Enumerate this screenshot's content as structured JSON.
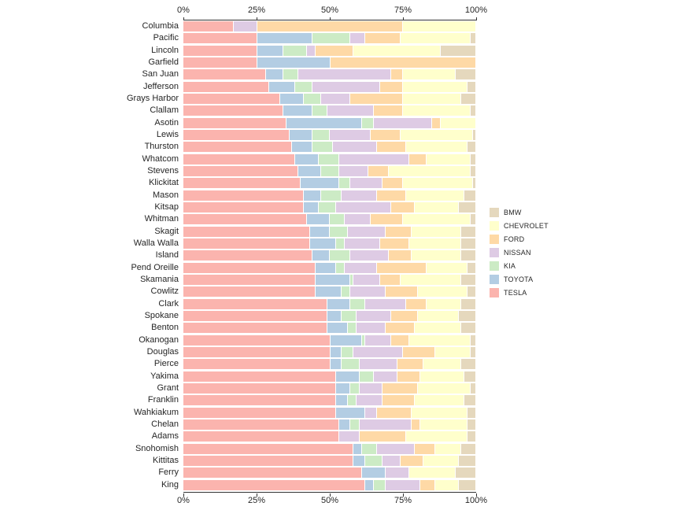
{
  "colors": {
    "axis_line": "#333333",
    "text": "#262626",
    "background": "#ffffff"
  },
  "axis": {
    "tick_labels": [
      "0%",
      "25%",
      "50%",
      "75%",
      "100%"
    ],
    "tick_values": [
      0,
      25,
      50,
      75,
      100
    ]
  },
  "legend": {
    "items": [
      {
        "label": "BMW",
        "color": "#e5d8bd"
      },
      {
        "label": "CHEVROLET",
        "color": "#ffffcc"
      },
      {
        "label": "FORD",
        "color": "#fed9a6"
      },
      {
        "label": "NISSAN",
        "color": "#decbe4"
      },
      {
        "label": "KIA",
        "color": "#ccebc5"
      },
      {
        "label": "TOYOTA",
        "color": "#b3cde3"
      },
      {
        "label": "TESLA",
        "color": "#fbb4ae"
      }
    ]
  },
  "chart_data": {
    "type": "bar",
    "orientation": "horizontal",
    "stacked": true,
    "unit": "percent",
    "xlim": [
      0,
      100
    ],
    "grid": false,
    "legend_position": "right",
    "categories": [
      "Columbia",
      "Pacific",
      "Lincoln",
      "Garfield",
      "San Juan",
      "Jefferson",
      "Grays Harbor",
      "Clallam",
      "Asotin",
      "Lewis",
      "Thurston",
      "Whatcom",
      "Stevens",
      "Klickitat",
      "Mason",
      "Kitsap",
      "Whitman",
      "Skagit",
      "Walla Walla",
      "Island",
      "Pend Oreille",
      "Skamania",
      "Cowlitz",
      "Clark",
      "Spokane",
      "Benton",
      "Okanogan",
      "Douglas",
      "Pierce",
      "Yakima",
      "Grant",
      "Franklin",
      "Wahkiakum",
      "Chelan",
      "Adams",
      "Snohomish",
      "Kittitas",
      "Ferry",
      "King"
    ],
    "series": [
      {
        "name": "TESLA",
        "color": "#fbb4ae",
        "values": [
          17,
          25,
          25,
          25,
          28,
          29,
          33,
          34,
          35,
          36,
          37,
          38,
          39,
          40,
          41,
          41,
          42,
          43,
          43,
          44,
          45,
          45,
          45,
          49,
          49,
          49,
          50,
          50,
          50,
          52,
          52,
          52,
          52,
          53,
          53,
          58,
          58,
          61,
          62
        ]
      },
      {
        "name": "TOYOTA",
        "color": "#b3cde3",
        "values": [
          0,
          19,
          9,
          25,
          6,
          9,
          8,
          10,
          26,
          8,
          7,
          8,
          8,
          13,
          6,
          5,
          8,
          7,
          9,
          6,
          7,
          12,
          9,
          8,
          5,
          7,
          11,
          4,
          4,
          8,
          5,
          4,
          10,
          4,
          0,
          3,
          4,
          8,
          3
        ]
      },
      {
        "name": "KIA",
        "color": "#ccebc5",
        "values": [
          0,
          13,
          8,
          0,
          5,
          6,
          6,
          5,
          4,
          6,
          7,
          7,
          6,
          4,
          7,
          6,
          5,
          6,
          3,
          7,
          3,
          1,
          3,
          5,
          5,
          3,
          1,
          4,
          6,
          5,
          3,
          3,
          0,
          3,
          0,
          5,
          6,
          0,
          4
        ]
      },
      {
        "name": "NISSAN",
        "color": "#decbe4",
        "values": [
          8,
          5,
          3,
          0,
          32,
          23,
          10,
          16,
          20,
          14,
          15,
          24,
          10,
          11,
          12,
          19,
          9,
          13,
          12,
          13,
          11,
          9,
          12,
          14,
          12,
          10,
          9,
          17,
          13,
          8,
          8,
          9,
          4,
          18,
          7,
          13,
          6,
          8,
          12
        ]
      },
      {
        "name": "FORD",
        "color": "#fed9a6",
        "values": [
          50,
          12,
          13,
          50,
          4,
          8,
          18,
          10,
          3,
          10,
          10,
          6,
          7,
          7,
          10,
          8,
          11,
          9,
          10,
          8,
          17,
          7,
          11,
          7,
          9,
          10,
          6,
          11,
          9,
          8,
          12,
          11,
          12,
          3,
          16,
          7,
          8,
          0,
          5
        ]
      },
      {
        "name": "CHEVROLET",
        "color": "#ffffcc",
        "values": [
          25,
          24,
          30,
          0,
          18,
          22,
          20,
          23,
          12,
          25,
          21,
          15,
          28,
          24,
          20,
          15,
          23,
          17,
          18,
          17,
          14,
          21,
          17,
          12,
          14,
          16,
          21,
          12,
          13,
          15,
          18,
          17,
          19,
          16,
          21,
          9,
          12,
          16,
          8
        ]
      },
      {
        "name": "BMW",
        "color": "#e5d8bd",
        "values": [
          0,
          2,
          12,
          0,
          7,
          3,
          5,
          2,
          0,
          1,
          3,
          2,
          2,
          1,
          4,
          6,
          2,
          5,
          5,
          5,
          3,
          5,
          3,
          5,
          6,
          5,
          2,
          2,
          5,
          4,
          2,
          4,
          3,
          3,
          3,
          5,
          6,
          7,
          6
        ]
      }
    ]
  }
}
